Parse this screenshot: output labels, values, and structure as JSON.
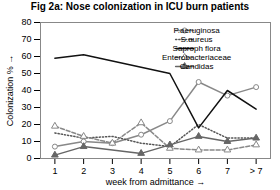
{
  "chart_data": {
    "type": "line",
    "title": "Fig 2a: Nose colonization in ICU burn patients",
    "xlabel": "week from admittance",
    "ylabel": "Colonization %",
    "xlim": [
      0.5,
      8.5
    ],
    "xticks": [
      1,
      2,
      3,
      4,
      5,
      6,
      7,
      {
        "value": 8,
        "label": "> 7"
      }
    ],
    "ylim": [
      0,
      80
    ],
    "yticks": [
      0,
      10,
      20,
      30,
      40,
      50,
      60,
      70,
      80
    ],
    "grid": false,
    "legend": "upper right",
    "series": [
      {
        "name": "P.aeruginosa",
        "color": "#888888",
        "line_style": "solid",
        "marker": "open_circle",
        "x": [
          1,
          2,
          3,
          4,
          5,
          6,
          7,
          8
        ],
        "values": [
          7,
          10,
          9,
          14,
          22,
          45,
          37,
          42
        ]
      },
      {
        "name": "S.aureus",
        "color": "#555555",
        "line_style": "dotted",
        "x": [
          1,
          2,
          3,
          4,
          5,
          6,
          7,
          8
        ],
        "values": [
          15,
          12,
          13,
          9,
          7,
          20,
          12,
          12
        ]
      },
      {
        "name": "Saproph flora",
        "color": "#111111",
        "line_style": "solid",
        "x": [
          1,
          2,
          5,
          6,
          7,
          8
        ],
        "values": [
          59,
          61,
          50,
          18,
          40,
          29
        ]
      },
      {
        "name": "Enterobacteriaceae",
        "color": "#888888",
        "line_style": "dashed",
        "marker": "open_triangle",
        "x": [
          1,
          2,
          3,
          4,
          5,
          6,
          7,
          8
        ],
        "values": [
          19,
          13,
          9,
          21,
          6,
          5,
          5,
          8
        ]
      },
      {
        "name": "Candidas",
        "color": "#666666",
        "line_style": "solid",
        "marker": "triangle",
        "x": [
          1,
          2,
          4,
          5,
          6,
          7,
          8
        ],
        "values": [
          2,
          7,
          3,
          8,
          13,
          10,
          12
        ]
      }
    ]
  }
}
